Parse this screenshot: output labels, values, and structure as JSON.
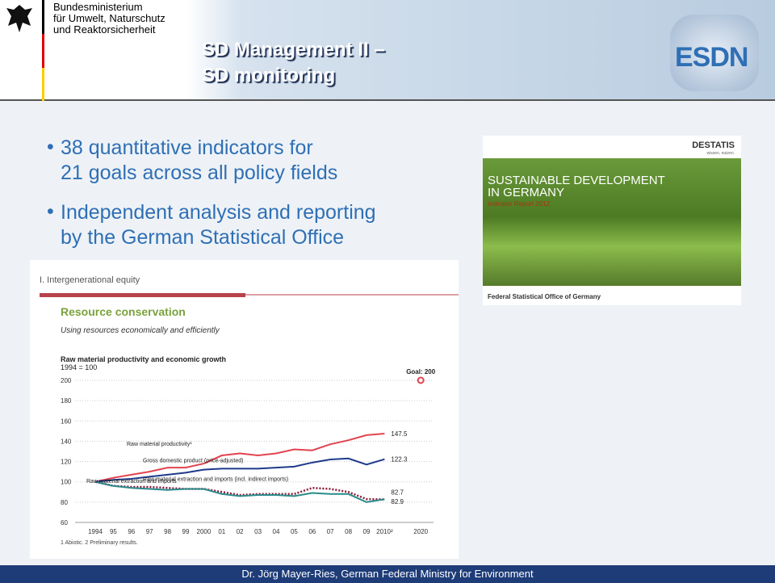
{
  "header": {
    "ministry": [
      "Bundesministerium",
      "für Umwelt, Naturschutz",
      "und Reaktorsicherheit"
    ],
    "title": [
      "SD Management II –",
      "SD monitoring"
    ],
    "logo": "ESDN"
  },
  "bullets": [
    [
      "38 quantitative indicators for",
      "21 goals across all policy fields"
    ],
    [
      "Independent analysis and reporting",
      "by the German Statistical Office"
    ]
  ],
  "cover": {
    "brand": "DESTATIS",
    "tagline": "wissen. nutzen.",
    "title": [
      "SUSTAINABLE DEVELOPMENT",
      "IN GERMANY"
    ],
    "subtitle": "Indicator Report 2012",
    "publisher": "Federal Statistical Office of Germany"
  },
  "chart": {
    "type": "line",
    "section": "I. Intergenerational equity",
    "heading": "Resource conservation",
    "subheading": "Using resources economically and efficiently",
    "title": "Raw material productivity and economic growth",
    "subtitle": "1994 = 100",
    "categories": [
      "1994",
      "95",
      "96",
      "97",
      "98",
      "99",
      "2000",
      "01",
      "02",
      "03",
      "04",
      "05",
      "06",
      "07",
      "08",
      "09",
      "2010²",
      null,
      "2020"
    ],
    "ylim": [
      60,
      200
    ],
    "yticks": [
      60,
      80,
      100,
      120,
      140,
      160,
      180,
      200
    ],
    "grid": true,
    "series": [
      {
        "name": "Raw material productivity¹",
        "color": "#e2434f",
        "dash": false,
        "values": [
          100,
          104,
          107,
          110,
          114,
          114,
          118,
          126,
          128,
          126,
          128,
          132,
          131,
          137,
          141,
          146,
          147.5,
          null,
          null
        ]
      },
      {
        "name": "Gross domestic product (price-adjusted)",
        "color": "#1f3a8a",
        "dash": false,
        "values": [
          100,
          102,
          103,
          105,
          107,
          109,
          112,
          113,
          113,
          113,
          114,
          115,
          119,
          122,
          123,
          117,
          122.3,
          null,
          null
        ]
      },
      {
        "name": "Raw material extraction and imports (incl. indirect imports)",
        "color": "#8b1a3a",
        "dash": true,
        "values": [
          100,
          96,
          95,
          95,
          94,
          93,
          93,
          90,
          87,
          88,
          88,
          88,
          94,
          93,
          90,
          83,
          82.7,
          null,
          null
        ]
      },
      {
        "name": "Raw material extraction and imports",
        "color": "#2a8a8a",
        "dash": false,
        "values": [
          100,
          96,
          94,
          93,
          92,
          93,
          93,
          88,
          86,
          87,
          87,
          86,
          89,
          88,
          88,
          80,
          82.9,
          null,
          null
        ]
      }
    ],
    "goal_label": "Goal: 200",
    "goal_value": 200,
    "goal_index": 18,
    "footnote": "1 Abiotic. 2 Preliminary results."
  },
  "footer": "Dr. Jörg Mayer-Ries, German Federal Ministry for Environment"
}
